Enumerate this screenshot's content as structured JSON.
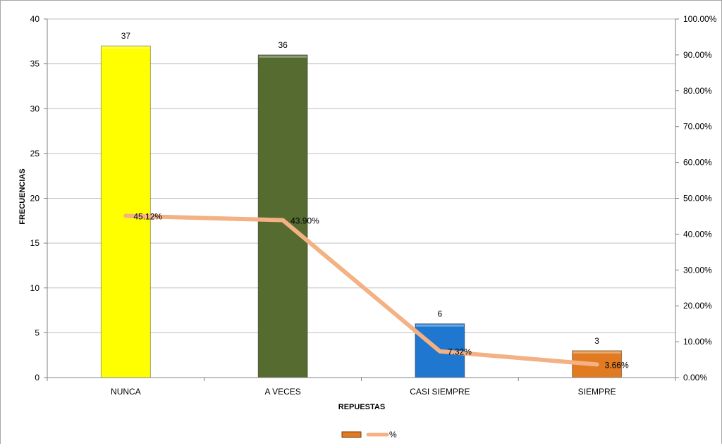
{
  "chart_data": {
    "type": "bar",
    "categories": [
      "NUNCA",
      "A VECES",
      "CASI SIEMPRE",
      "SIEMPRE"
    ],
    "series": [
      {
        "name": "",
        "kind": "bar",
        "axis": "left",
        "values": [
          37,
          36,
          6,
          3
        ],
        "data_labels": [
          "37",
          "36",
          "6",
          "3"
        ],
        "colors": [
          "#ffff00",
          "#556b2f",
          "#1f77d0",
          "#e07b22"
        ]
      },
      {
        "name": "%",
        "kind": "line",
        "axis": "right",
        "values": [
          45.12,
          43.9,
          7.32,
          3.66
        ],
        "data_labels": [
          "45.12%",
          "43.90%",
          "7.32%",
          "3.66%"
        ],
        "color": "#f4b183"
      }
    ],
    "xlabel": "REPUESTAS",
    "ylabel": "FRECUENCIAS",
    "ylim": [
      0,
      40
    ],
    "yticks": [
      "0",
      "5",
      "10",
      "15",
      "20",
      "25",
      "30",
      "35",
      "40"
    ],
    "y2lim": [
      0,
      100
    ],
    "y2ticks": [
      "0.00%",
      "10.00%",
      "20.00%",
      "30.00%",
      "40.00%",
      "50.00%",
      "60.00%",
      "70.00%",
      "80.00%",
      "90.00%",
      "100.00%"
    ],
    "grid": true,
    "legend": "bottom",
    "legend_entries": [
      "",
      "%"
    ]
  }
}
